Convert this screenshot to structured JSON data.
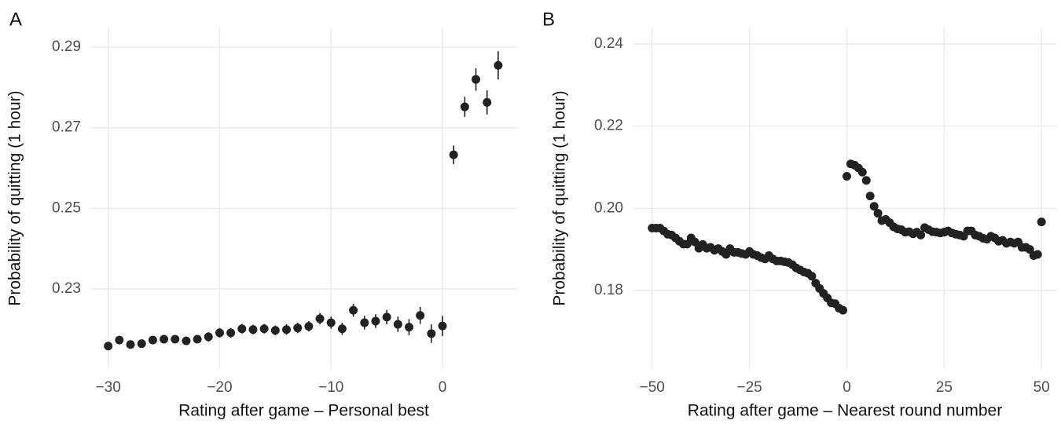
{
  "chart_data": [
    {
      "type": "scatter",
      "panel": "A",
      "xlabel": "Rating after game – Personal best",
      "ylabel": "Probability of quitting (1 hour)",
      "x": [
        -30,
        -29,
        -28,
        -27,
        -26,
        -25,
        -24,
        -23,
        -22,
        -21,
        -20,
        -19,
        -18,
        -17,
        -16,
        -15,
        -14,
        -13,
        -12,
        -11,
        -10,
        -9,
        -8,
        -7,
        -6,
        -5,
        -4,
        -3,
        -2,
        -1,
        0,
        1,
        2,
        3,
        4,
        5
      ],
      "values": [
        0.2158,
        0.2173,
        0.2162,
        0.2164,
        0.2173,
        0.2175,
        0.2175,
        0.2171,
        0.2175,
        0.2181,
        0.2191,
        0.2191,
        0.2201,
        0.2199,
        0.2201,
        0.2197,
        0.2199,
        0.2203,
        0.2207,
        0.2226,
        0.2216,
        0.2201,
        0.2247,
        0.2216,
        0.222,
        0.223,
        0.2212,
        0.2205,
        0.2234,
        0.2189,
        0.2208,
        0.2633,
        0.2752,
        0.282,
        0.2763,
        0.2855
      ],
      "errors": [
        0.001,
        0.001,
        0.001,
        0.001,
        0.001,
        0.001,
        0.001,
        0.001,
        0.001,
        0.0012,
        0.0012,
        0.0012,
        0.0012,
        0.0012,
        0.0012,
        0.0012,
        0.0013,
        0.0013,
        0.0013,
        0.0014,
        0.0015,
        0.0015,
        0.0016,
        0.0017,
        0.0017,
        0.0018,
        0.0019,
        0.002,
        0.0021,
        0.0023,
        0.0025,
        0.0023,
        0.0025,
        0.0028,
        0.003,
        0.0035
      ],
      "color": "#222222",
      "xlim": [
        -31.6,
        6.7
      ],
      "ylim": [
        0.2101,
        0.2949
      ],
      "xticks": [
        {
          "value": -30,
          "label": "−30"
        },
        {
          "value": -20,
          "label": "−20"
        },
        {
          "value": -10,
          "label": "−10"
        },
        0
      ],
      "yticks": [
        0.23,
        0.25,
        0.27,
        0.29
      ],
      "grid": true
    },
    {
      "type": "scatter",
      "panel": "B",
      "xlabel": "Rating after game – Nearest round number",
      "ylabel": "Probability of quitting (1 hour)",
      "x": [
        -50,
        -49,
        -48,
        -47,
        -46,
        -45,
        -44,
        -43,
        -42,
        -41,
        -40,
        -39,
        -38,
        -37,
        -36,
        -35,
        -34,
        -33,
        -32,
        -31,
        -30,
        -29,
        -28,
        -27,
        -26,
        -25,
        -24,
        -23,
        -22,
        -21,
        -20,
        -19,
        -18,
        -17,
        -16,
        -15,
        -14,
        -13,
        -12,
        -11,
        -10,
        -9,
        -8,
        -7,
        -6,
        -5,
        -4,
        -3,
        -2,
        -1,
        0,
        1,
        2,
        3,
        4,
        5,
        6,
        7,
        8,
        9,
        10,
        11,
        12,
        13,
        14,
        15,
        16,
        17,
        18,
        19,
        20,
        21,
        22,
        23,
        24,
        25,
        26,
        27,
        28,
        29,
        30,
        31,
        32,
        33,
        34,
        35,
        36,
        37,
        38,
        39,
        40,
        41,
        42,
        43,
        44,
        45,
        46,
        47,
        48,
        49,
        50
      ],
      "values": [
        0.1952,
        0.1952,
        0.1952,
        0.1945,
        0.1937,
        0.1935,
        0.1928,
        0.192,
        0.1913,
        0.1913,
        0.1928,
        0.1918,
        0.1903,
        0.1912,
        0.1903,
        0.1905,
        0.1898,
        0.1902,
        0.1895,
        0.1888,
        0.1902,
        0.1893,
        0.1893,
        0.189,
        0.1888,
        0.1895,
        0.1888,
        0.1885,
        0.188,
        0.1877,
        0.1885,
        0.1877,
        0.1872,
        0.1872,
        0.187,
        0.1868,
        0.1863,
        0.1855,
        0.185,
        0.1845,
        0.1842,
        0.1835,
        0.1818,
        0.1805,
        0.1793,
        0.1782,
        0.177,
        0.1768,
        0.1757,
        0.1752,
        0.2078,
        0.2108,
        0.2105,
        0.2098,
        0.2088,
        0.2068,
        0.203,
        0.2005,
        0.1988,
        0.197,
        0.1973,
        0.1965,
        0.1955,
        0.195,
        0.1948,
        0.1942,
        0.1943,
        0.1938,
        0.1942,
        0.1935,
        0.1953,
        0.1948,
        0.1943,
        0.1942,
        0.194,
        0.1942,
        0.1945,
        0.194,
        0.1937,
        0.1935,
        0.1932,
        0.1945,
        0.1945,
        0.1935,
        0.1932,
        0.1927,
        0.1925,
        0.1932,
        0.1928,
        0.192,
        0.1922,
        0.1915,
        0.1918,
        0.1915,
        0.1918,
        0.1905,
        0.1905,
        0.19,
        0.1885,
        0.1888,
        0.1967
      ],
      "color": "#222222",
      "xlim": [
        -55,
        54
      ],
      "ylim": [
        0.1609,
        0.244
      ],
      "xticks": [
        {
          "value": -50,
          "label": "−50"
        },
        {
          "value": -25,
          "label": "−25"
        },
        0,
        25,
        50
      ],
      "yticks": [
        0.18,
        {
          "value": 0.2,
          "label": "0.20"
        },
        0.22,
        0.24
      ],
      "grid": true
    }
  ]
}
